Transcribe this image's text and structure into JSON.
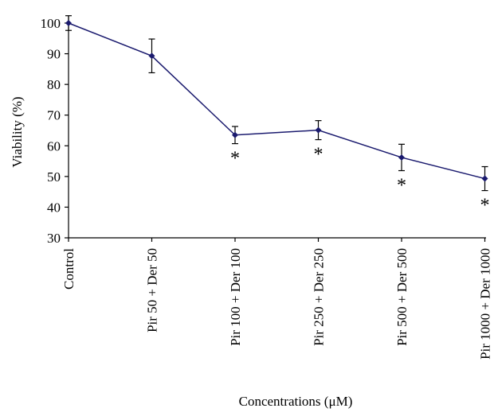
{
  "chart_data": {
    "type": "line",
    "title": "",
    "xlabel": "Concentrations (μM)",
    "ylabel": "Viability (%)",
    "ylim": [
      30,
      100
    ],
    "yticks": [
      "30",
      "40",
      "50",
      "60",
      "70",
      "80",
      "90",
      "100"
    ],
    "categories": [
      "Control",
      "Pir 50 + Der 50",
      "Pir 100 + Der 100",
      "Pir 250 + Der 250",
      "Pir 500 + Der 500",
      "Pir 1000 + Der 1000"
    ],
    "series": [
      {
        "values": [
          100,
          89.3,
          63.5,
          65.1,
          56.2,
          49.3
        ],
        "error": [
          2.4,
          5.5,
          2.8,
          3.1,
          4.3,
          3.9
        ],
        "color": "#1a1a6e"
      }
    ],
    "significance_marks": [
      "",
      "",
      "*",
      "*",
      "*",
      "*"
    ],
    "grid": false,
    "legend": "none"
  }
}
